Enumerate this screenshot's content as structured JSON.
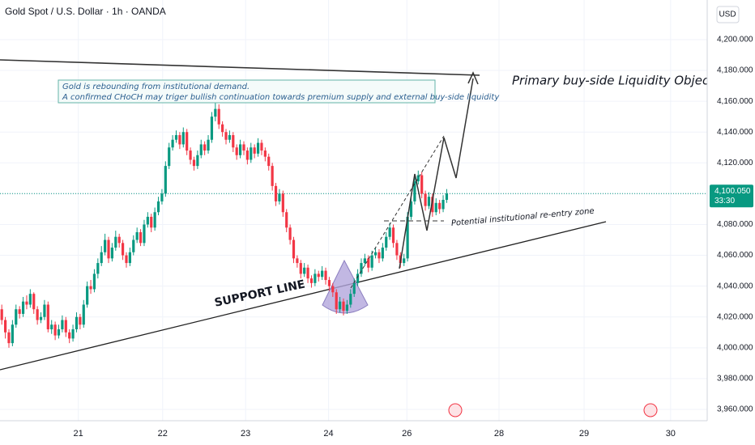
{
  "chart_data": {
    "type": "candlestick",
    "title": "Gold Spot / U.S. Dollar · 1h · OANDA",
    "currency": "USD",
    "up_color": "#089981",
    "down_color": "#f23645",
    "xlim": [
      0,
      198
    ],
    "xticks": [
      {
        "value": 22,
        "label": "21"
      },
      {
        "value": 45.7,
        "label": "22"
      },
      {
        "value": 69,
        "label": "23"
      },
      {
        "value": 92.3,
        "label": "24"
      },
      {
        "value": 114.3,
        "label": "26"
      },
      {
        "value": 140.2,
        "label": "28"
      },
      {
        "value": 164.1,
        "label": "29"
      },
      {
        "value": 188.4,
        "label": "30"
      }
    ],
    "ylim": [
      3947.4,
      4225.7
    ],
    "yticks": [
      {
        "value": 3960,
        "label": "3,960.000"
      },
      {
        "value": 3980,
        "label": "3,980.000"
      },
      {
        "value": 4000,
        "label": "4,000.000"
      },
      {
        "value": 4020,
        "label": "4,020.000"
      },
      {
        "value": 4040,
        "label": "4,040.000"
      },
      {
        "value": 4060,
        "label": "4,060.000"
      },
      {
        "value": 4080,
        "label": "4,080.000"
      },
      {
        "value": 4100,
        "label": "4,100.000"
      },
      {
        "value": 4120,
        "label": "4,120.000"
      },
      {
        "value": 4140,
        "label": "4,140.000"
      },
      {
        "value": 4160,
        "label": "4,160.000"
      },
      {
        "value": 4180,
        "label": "4,180.000"
      },
      {
        "value": 4200,
        "label": "4,200.000"
      }
    ],
    "last_price": {
      "value": 4100.05,
      "label": "4,100.050"
    },
    "countdown": "33:30",
    "annotations": {
      "note_line1": "Gold is rebounding from institutional demand.",
      "note_line2": "A confirmed CHoCH may triger bullish continuation towards premium supply and external buy-side liquidity",
      "objective": "Primary buy-side Liquidity Objective",
      "support": "SUPPORT LINE",
      "zone": "Potential institutional re-entry zone"
    },
    "candles": [
      [
        4025,
        4028,
        4015,
        4018
      ],
      [
        4018,
        4020,
        4006,
        4010
      ],
      [
        4010,
        4012,
        4000,
        4003
      ],
      [
        4003,
        4018,
        4001,
        4015
      ],
      [
        4015,
        4028,
        4013,
        4025
      ],
      [
        4025,
        4027,
        4019,
        4022
      ],
      [
        4022,
        4033,
        4020,
        4030
      ],
      [
        4030,
        4034,
        4025,
        4028
      ],
      [
        4028,
        4038,
        4026,
        4035
      ],
      [
        4035,
        4036,
        4022,
        4025
      ],
      [
        4025,
        4027,
        4015,
        4018
      ],
      [
        4018,
        4023,
        4016,
        4020
      ],
      [
        4020,
        4031,
        4018,
        4028
      ],
      [
        4028,
        4030,
        4010,
        4012
      ],
      [
        4012,
        4018,
        4009,
        4015
      ],
      [
        4015,
        4017,
        4005,
        4008
      ],
      [
        4008,
        4015,
        4006,
        4012
      ],
      [
        4012,
        4021,
        4010,
        4018
      ],
      [
        4018,
        4020,
        4007,
        4010
      ],
      [
        4010,
        4012,
        4003,
        4006
      ],
      [
        4006,
        4015,
        4004,
        4012
      ],
      [
        4012,
        4023,
        4010,
        4020
      ],
      [
        4020,
        4022,
        4012,
        4015
      ],
      [
        4015,
        4031,
        4013,
        4028
      ],
      [
        4028,
        4043,
        4026,
        4040
      ],
      [
        4040,
        4044,
        4035,
        4038
      ],
      [
        4038,
        4051,
        4036,
        4048
      ],
      [
        4048,
        4058,
        4045,
        4055
      ],
      [
        4055,
        4066,
        4053,
        4062
      ],
      [
        4062,
        4074,
        4060,
        4070
      ],
      [
        4070,
        4072,
        4055,
        4058
      ],
      [
        4058,
        4068,
        4056,
        4065
      ],
      [
        4065,
        4076,
        4063,
        4072
      ],
      [
        4072,
        4074,
        4065,
        4068
      ],
      [
        4068,
        4070,
        4057,
        4060
      ],
      [
        4060,
        4062,
        4052,
        4055
      ],
      [
        4055,
        4065,
        4053,
        4062
      ],
      [
        4062,
        4073,
        4060,
        4070
      ],
      [
        4070,
        4078,
        4068,
        4075
      ],
      [
        4075,
        4077,
        4066,
        4068
      ],
      [
        4068,
        4083,
        4066,
        4080
      ],
      [
        4080,
        4088,
        4078,
        4085
      ],
      [
        4085,
        4087,
        4075,
        4078
      ],
      [
        4078,
        4091,
        4076,
        4088
      ],
      [
        4088,
        4098,
        4086,
        4095
      ],
      [
        4095,
        4103,
        4093,
        4100
      ],
      [
        4100,
        4121,
        4098,
        4118
      ],
      [
        4118,
        4133,
        4116,
        4130
      ],
      [
        4130,
        4138,
        4128,
        4135
      ],
      [
        4135,
        4141,
        4133,
        4138
      ],
      [
        4138,
        4140,
        4129,
        4132
      ],
      [
        4132,
        4143,
        4130,
        4140
      ],
      [
        4140,
        4142,
        4125,
        4128
      ],
      [
        4128,
        4130,
        4119,
        4122
      ],
      [
        4122,
        4124,
        4115,
        4118
      ],
      [
        4118,
        4128,
        4116,
        4125
      ],
      [
        4125,
        4135,
        4123,
        4132
      ],
      [
        4132,
        4134,
        4125,
        4128
      ],
      [
        4128,
        4138,
        4126,
        4135
      ],
      [
        4135,
        4153,
        4133,
        4150
      ],
      [
        4150,
        4160,
        4147,
        4155
      ],
      [
        4155,
        4158,
        4142,
        4145
      ],
      [
        4145,
        4147,
        4137,
        4140
      ],
      [
        4140,
        4142,
        4132,
        4135
      ],
      [
        4135,
        4141,
        4133,
        4138
      ],
      [
        4138,
        4140,
        4127,
        4130
      ],
      [
        4130,
        4132,
        4122,
        4125
      ],
      [
        4125,
        4135,
        4123,
        4132
      ],
      [
        4132,
        4134,
        4125,
        4128
      ],
      [
        4128,
        4130,
        4119,
        4122
      ],
      [
        4122,
        4133,
        4120,
        4130
      ],
      [
        4130,
        4132,
        4123,
        4126
      ],
      [
        4126,
        4136,
        4124,
        4133
      ],
      [
        4133,
        4135,
        4125,
        4128
      ],
      [
        4128,
        4130,
        4121,
        4124
      ],
      [
        4124,
        4126,
        4115,
        4118
      ],
      [
        4118,
        4120,
        4102,
        4105
      ],
      [
        4105,
        4107,
        4092,
        4095
      ],
      [
        4095,
        4103,
        4093,
        4100
      ],
      [
        4100,
        4102,
        4085,
        4088
      ],
      [
        4088,
        4090,
        4075,
        4078
      ],
      [
        4078,
        4080,
        4067,
        4070
      ],
      [
        4070,
        4072,
        4055,
        4058
      ],
      [
        4058,
        4060,
        4052,
        4055
      ],
      [
        4055,
        4057,
        4045,
        4048
      ],
      [
        4048,
        4055,
        4046,
        4052
      ],
      [
        4052,
        4054,
        4042,
        4045
      ],
      [
        4045,
        4047,
        4039,
        4042
      ],
      [
        4042,
        4051,
        4040,
        4048
      ],
      [
        4048,
        4050,
        4043,
        4046
      ],
      [
        4046,
        4053,
        4044,
        4050
      ],
      [
        4050,
        4052,
        4041,
        4044
      ],
      [
        4044,
        4046,
        4037,
        4040
      ],
      [
        4040,
        4042,
        4033,
        4036
      ],
      [
        4036,
        4038,
        4022,
        4025
      ],
      [
        4025,
        4033,
        4023,
        4030
      ],
      [
        4030,
        4032,
        4021,
        4024
      ],
      [
        4024,
        4031,
        4022,
        4028
      ],
      [
        4028,
        4038,
        4026,
        4035
      ],
      [
        4035,
        4045,
        4033,
        4042
      ],
      [
        4042,
        4051,
        4040,
        4048
      ],
      [
        4048,
        4058,
        4046,
        4055
      ],
      [
        4055,
        4061,
        4053,
        4058
      ],
      [
        4058,
        4060,
        4049,
        4052
      ],
      [
        4052,
        4063,
        4050,
        4060
      ],
      [
        4060,
        4065,
        4058,
        4062
      ],
      [
        4062,
        4064,
        4055,
        4058
      ],
      [
        4058,
        4068,
        4056,
        4065
      ],
      [
        4065,
        4075,
        4063,
        4072
      ],
      [
        4072,
        4081,
        4070,
        4078
      ],
      [
        4078,
        4080,
        4065,
        4068
      ],
      [
        4068,
        4070,
        4057,
        4060
      ],
      [
        4060,
        4062,
        4052,
        4055
      ],
      [
        4055,
        4061,
        4053,
        4058
      ],
      [
        4058,
        4088,
        4056,
        4085
      ],
      [
        4085,
        4098,
        4083,
        4095
      ],
      [
        4095,
        4111,
        4093,
        4108
      ],
      [
        4108,
        4115,
        4106,
        4112
      ],
      [
        4112,
        4114,
        4097,
        4100
      ],
      [
        4100,
        4102,
        4089,
        4092
      ],
      [
        4092,
        4101,
        4090,
        4098
      ],
      [
        4098,
        4100,
        4085,
        4088
      ],
      [
        4088,
        4097,
        4086,
        4094
      ],
      [
        4094,
        4096,
        4087,
        4090
      ],
      [
        4090,
        4099,
        4088,
        4096
      ],
      [
        4096,
        4103,
        4094,
        4100.05
      ]
    ]
  }
}
